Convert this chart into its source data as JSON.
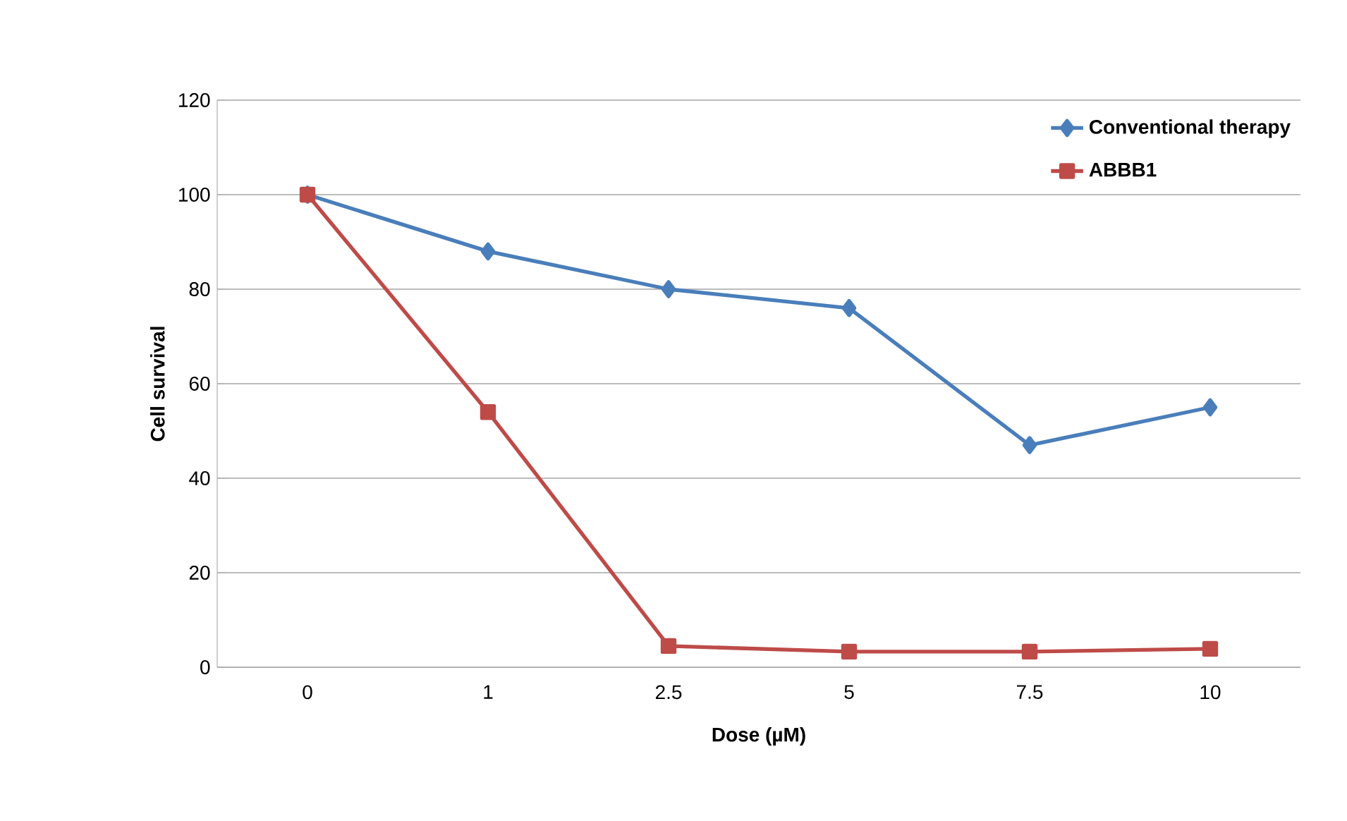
{
  "chart_data": {
    "type": "line",
    "xlabel": "Dose (µM)",
    "ylabel": "Cell survival",
    "categories": [
      "0",
      "1",
      "2.5",
      "5",
      "7.5",
      "10"
    ],
    "series": [
      {
        "name": "Conventional therapy",
        "color": "#4a7ebb",
        "marker": "diamond",
        "values": [
          100,
          88,
          80,
          76,
          47,
          55
        ]
      },
      {
        "name": "ABBB1",
        "color": "#be4b48",
        "marker": "square",
        "values": [
          100,
          54,
          4.5,
          3.3,
          3.3,
          3.9
        ]
      }
    ],
    "ylim": [
      0,
      120
    ],
    "yticks": [
      0,
      20,
      40,
      60,
      80,
      100,
      120
    ],
    "grid": "y",
    "legend": "top right",
    "line_style": "solid"
  }
}
